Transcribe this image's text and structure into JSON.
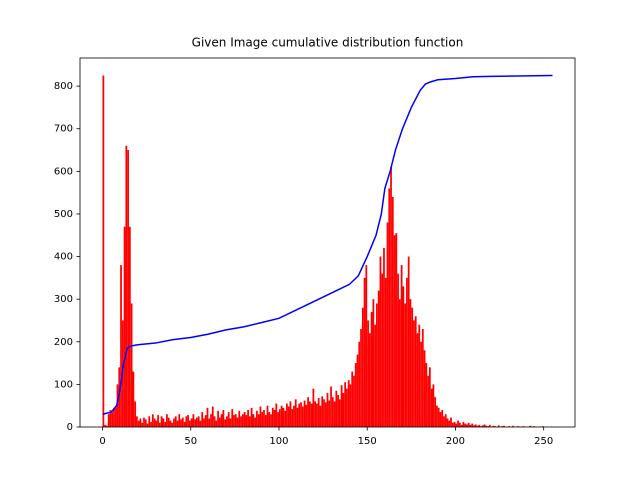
{
  "chart_data": {
    "type": "histogram",
    "title": "Given Image cumulative distribution function",
    "color": "#ff0000",
    "bins": [
      0,
      1,
      2,
      3,
      4,
      5,
      6,
      7,
      8,
      9,
      10,
      11,
      12,
      13,
      14,
      15,
      16,
      17,
      18,
      19,
      20,
      21,
      22,
      23,
      24,
      25,
      26,
      27,
      28,
      29,
      30,
      31,
      32,
      33,
      34,
      35,
      36,
      37,
      38,
      39,
      40,
      41,
      42,
      43,
      44,
      45,
      46,
      47,
      48,
      49,
      50,
      51,
      52,
      53,
      54,
      55,
      56,
      57,
      58,
      59,
      60,
      61,
      62,
      63,
      64,
      65,
      66,
      67,
      68,
      69,
      70,
      71,
      72,
      73,
      74,
      75,
      76,
      77,
      78,
      79,
      80,
      81,
      82,
      83,
      84,
      85,
      86,
      87,
      88,
      89,
      90,
      91,
      92,
      93,
      94,
      95,
      96,
      97,
      98,
      99,
      100,
      101,
      102,
      103,
      104,
      105,
      106,
      107,
      108,
      109,
      110,
      111,
      112,
      113,
      114,
      115,
      116,
      117,
      118,
      119,
      120,
      121,
      122,
      123,
      124,
      125,
      126,
      127,
      128,
      129,
      130,
      131,
      132,
      133,
      134,
      135,
      136,
      137,
      138,
      139,
      140,
      141,
      142,
      143,
      144,
      145,
      146,
      147,
      148,
      149,
      150,
      151,
      152,
      153,
      154,
      155,
      156,
      157,
      158,
      159,
      160,
      161,
      162,
      163,
      164,
      165,
      166,
      167,
      168,
      169,
      170,
      171,
      172,
      173,
      174,
      175,
      176,
      177,
      178,
      179,
      180,
      181,
      182,
      183,
      184,
      185,
      186,
      187,
      188,
      189,
      190,
      191,
      192,
      193,
      194,
      195,
      196,
      197,
      198,
      199,
      200,
      201,
      202,
      203,
      204,
      205,
      206,
      207,
      208,
      209,
      210,
      211,
      212,
      213,
      214,
      215,
      216,
      217,
      218,
      219,
      220,
      221,
      222,
      223,
      224,
      225,
      226,
      227,
      228,
      229,
      230,
      231,
      232,
      233,
      234,
      235,
      236,
      237,
      238,
      239,
      240,
      241,
      242,
      243,
      244,
      245,
      246,
      247,
      248,
      249,
      250,
      251,
      252,
      253,
      254,
      255,
      256
    ],
    "values": [
      825,
      5,
      3,
      30,
      40,
      35,
      45,
      50,
      100,
      140,
      380,
      250,
      470,
      660,
      650,
      470,
      290,
      130,
      60,
      25,
      15,
      20,
      10,
      22,
      18,
      8,
      25,
      12,
      30,
      20,
      15,
      28,
      10,
      25,
      20,
      12,
      30,
      22,
      15,
      10,
      20,
      25,
      15,
      30,
      18,
      22,
      12,
      25,
      28,
      15,
      20,
      30,
      18,
      22,
      25,
      15,
      35,
      20,
      28,
      45,
      20,
      30,
      48,
      25,
      15,
      38,
      22,
      30,
      40,
      18,
      25,
      35,
      20,
      42,
      28,
      30,
      22,
      38,
      25,
      30,
      35,
      28,
      40,
      25,
      45,
      30,
      22,
      38,
      30,
      48,
      35,
      40,
      28,
      50,
      35,
      30,
      45,
      40,
      55,
      35,
      42,
      50,
      45,
      38,
      55,
      48,
      60,
      42,
      50,
      65,
      45,
      55,
      58,
      48,
      62,
      52,
      70,
      60,
      55,
      90,
      60,
      55,
      68,
      50,
      72,
      65,
      58,
      80,
      62,
      95,
      70,
      60,
      85,
      75,
      65,
      98,
      80,
      105,
      90,
      110,
      100,
      130,
      120,
      150,
      170,
      200,
      230,
      280,
      350,
      380,
      250,
      220,
      270,
      300,
      240,
      290,
      320,
      400,
      360,
      420,
      350,
      480,
      560,
      610,
      540,
      450,
      455,
      360,
      300,
      380,
      330,
      290,
      350,
      400,
      300,
      280,
      250,
      260,
      220,
      240,
      200,
      230,
      180,
      150,
      120,
      140,
      90,
      100,
      70,
      50,
      45,
      35,
      40,
      25,
      30,
      20,
      15,
      22,
      10,
      12,
      8,
      15,
      10,
      5,
      12,
      8,
      6,
      10,
      5,
      8,
      4,
      6,
      3,
      5,
      2,
      4,
      6,
      3,
      2,
      5,
      1,
      3,
      2,
      0,
      4,
      1,
      2,
      3,
      0,
      1,
      2,
      0,
      3,
      1,
      0,
      2,
      1,
      0,
      2,
      1,
      0,
      1,
      3,
      0,
      2,
      1,
      0,
      1,
      0,
      2,
      0,
      1,
      0,
      0,
      1,
      0
    ],
    "line": {
      "type": "line",
      "color": "#0000ff",
      "x": [
        0,
        5,
        8,
        10,
        12,
        14,
        16,
        20,
        30,
        40,
        50,
        60,
        70,
        80,
        90,
        100,
        110,
        115,
        120,
        130,
        140,
        145,
        150,
        155,
        158,
        160,
        163,
        166,
        170,
        175,
        180,
        183,
        186,
        190,
        200,
        210,
        220,
        255
      ],
      "values": [
        30,
        35,
        50,
        90,
        150,
        185,
        190,
        193,
        197,
        205,
        210,
        218,
        228,
        235,
        245,
        255,
        275,
        285,
        295,
        315,
        335,
        355,
        400,
        450,
        500,
        560,
        600,
        650,
        700,
        750,
        790,
        805,
        810,
        815,
        818,
        822,
        823,
        825
      ]
    },
    "xlim": [
      -12.75,
      267.75
    ],
    "xticks": [
      0,
      50,
      100,
      150,
      200,
      250
    ],
    "ylim": [
      0,
      866
    ],
    "yticks": [
      0,
      100,
      200,
      300,
      400,
      500,
      600,
      700,
      800
    ]
  }
}
